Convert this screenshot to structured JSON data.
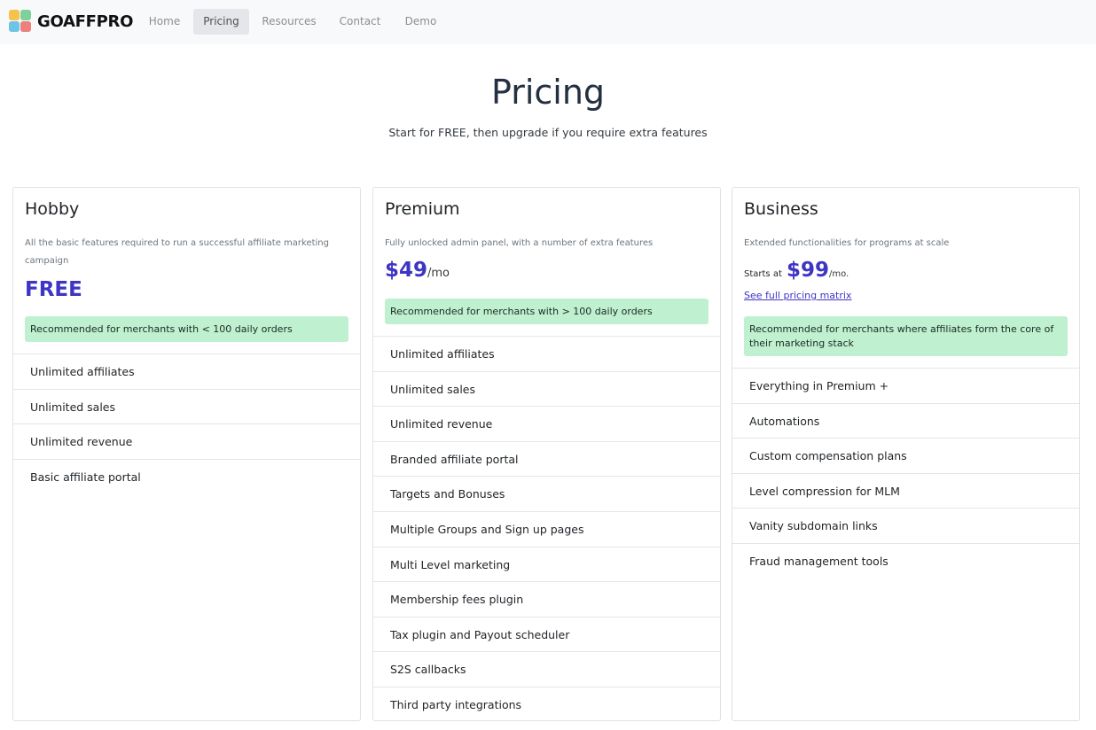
{
  "brand": {
    "name": "GOAFFPRO",
    "logo_colors": [
      "#f5c24c",
      "#6cc4e8",
      "#ef7f7f",
      "#7fd19b"
    ]
  },
  "nav": {
    "items": [
      {
        "label": "Home",
        "active": false
      },
      {
        "label": "Pricing",
        "active": true
      },
      {
        "label": "Resources",
        "active": false
      },
      {
        "label": "Contact",
        "active": false
      },
      {
        "label": "Demo",
        "active": false
      }
    ]
  },
  "hero": {
    "title": "Pricing",
    "subtitle": "Start for FREE, then upgrade if you require extra features"
  },
  "plans": [
    {
      "name": "Hobby",
      "description": "All the basic features required to run a successful affiliate marketing campaign",
      "price": "FREE",
      "recommendation": "Recommended for merchants with < 100 daily orders",
      "features": [
        "Unlimited affiliates",
        "Unlimited sales",
        "Unlimited revenue",
        "Basic affiliate portal"
      ]
    },
    {
      "name": "Premium",
      "description": "Fully unlocked admin panel, with a number of extra features",
      "price": "$49",
      "price_unit": "/mo",
      "recommendation": "Recommended for merchants with > 100 daily orders",
      "features": [
        "Unlimited affiliates",
        "Unlimited sales",
        "Unlimited revenue",
        "Branded affiliate portal",
        "Targets and Bonuses",
        "Multiple Groups and Sign up pages",
        "Multi Level marketing",
        "Membership fees plugin",
        "Tax plugin and Payout scheduler",
        "S2S callbacks",
        "Third party integrations"
      ]
    },
    {
      "name": "Business",
      "description": "Extended functionalities for programs at scale",
      "price_prefix": "Starts at",
      "price": "$99",
      "price_unit": "/mo.",
      "matrix_link": "See full pricing matrix",
      "recommendation": "Recommended for merchants where affiliates form the core of their marketing stack",
      "features": [
        "Everything in Premium +",
        "Automations",
        "Custom compensation plans",
        "Level compression for MLM",
        "Vanity subdomain links",
        "Fraud management tools"
      ]
    }
  ],
  "colors": {
    "accent": "#3e35c4",
    "recommend_bg": "#bff0cf",
    "nav_bg": "#f8f9fa"
  }
}
